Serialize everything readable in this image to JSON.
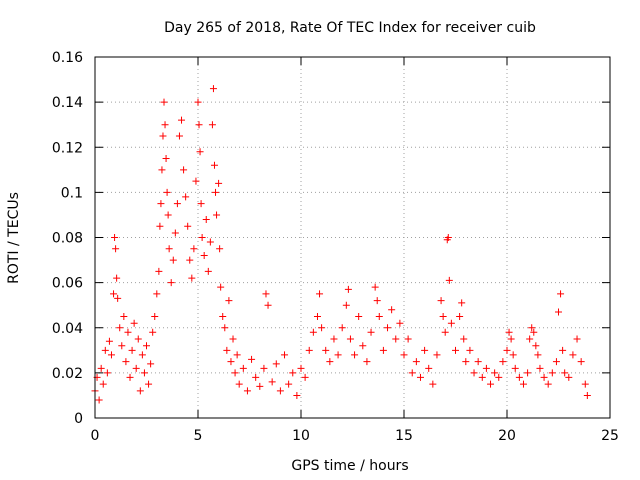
{
  "chart_data": {
    "type": "scatter",
    "title": "Day 265 of 2018, Rate Of TEC Index for receiver cuib",
    "xlabel": "GPS time / hours",
    "ylabel": "ROTI / TECUs",
    "xlim": [
      0,
      25
    ],
    "ylim": [
      0,
      0.16
    ],
    "xticks": [
      0,
      5,
      10,
      15,
      20,
      25
    ],
    "yticks": [
      0,
      0.02,
      0.04,
      0.06,
      0.08,
      0.1,
      0.12,
      0.14,
      0.16
    ],
    "xtick_labels": [
      "0",
      "5",
      "10",
      "15",
      "20",
      "25"
    ],
    "ytick_labels": [
      "0",
      "0.02",
      "0.04",
      "0.06",
      "0.08",
      "0.1",
      "0.12",
      "0.14",
      "0.16"
    ],
    "grid": true,
    "marker": "+",
    "color": "#ff0000",
    "series": [
      {
        "name": "ROTI",
        "points": [
          [
            0.0,
            0.012
          ],
          [
            0.1,
            0.018
          ],
          [
            0.2,
            0.008
          ],
          [
            0.3,
            0.022
          ],
          [
            0.4,
            0.015
          ],
          [
            0.5,
            0.03
          ],
          [
            0.6,
            0.02
          ],
          [
            0.7,
            0.034
          ],
          [
            0.8,
            0.028
          ],
          [
            0.9,
            0.055
          ],
          [
            0.95,
            0.08
          ],
          [
            1.0,
            0.075
          ],
          [
            1.05,
            0.062
          ],
          [
            1.1,
            0.053
          ],
          [
            1.2,
            0.04
          ],
          [
            1.3,
            0.032
          ],
          [
            1.4,
            0.045
          ],
          [
            1.5,
            0.025
          ],
          [
            1.6,
            0.038
          ],
          [
            1.7,
            0.018
          ],
          [
            1.8,
            0.03
          ],
          [
            1.9,
            0.042
          ],
          [
            2.0,
            0.022
          ],
          [
            2.1,
            0.035
          ],
          [
            2.2,
            0.012
          ],
          [
            2.3,
            0.028
          ],
          [
            2.4,
            0.02
          ],
          [
            2.5,
            0.032
          ],
          [
            2.6,
            0.015
          ],
          [
            2.7,
            0.024
          ],
          [
            2.8,
            0.038
          ],
          [
            2.9,
            0.045
          ],
          [
            3.0,
            0.055
          ],
          [
            3.1,
            0.065
          ],
          [
            3.15,
            0.085
          ],
          [
            3.2,
            0.095
          ],
          [
            3.25,
            0.11
          ],
          [
            3.3,
            0.125
          ],
          [
            3.35,
            0.14
          ],
          [
            3.4,
            0.13
          ],
          [
            3.45,
            0.115
          ],
          [
            3.5,
            0.1
          ],
          [
            3.55,
            0.09
          ],
          [
            3.6,
            0.075
          ],
          [
            3.7,
            0.06
          ],
          [
            3.8,
            0.07
          ],
          [
            3.9,
            0.082
          ],
          [
            4.0,
            0.095
          ],
          [
            4.1,
            0.125
          ],
          [
            4.2,
            0.132
          ],
          [
            4.3,
            0.11
          ],
          [
            4.4,
            0.098
          ],
          [
            4.5,
            0.085
          ],
          [
            4.6,
            0.07
          ],
          [
            4.7,
            0.062
          ],
          [
            4.8,
            0.075
          ],
          [
            4.9,
            0.105
          ],
          [
            5.0,
            0.14
          ],
          [
            5.05,
            0.13
          ],
          [
            5.1,
            0.118
          ],
          [
            5.15,
            0.095
          ],
          [
            5.2,
            0.08
          ],
          [
            5.3,
            0.072
          ],
          [
            5.4,
            0.088
          ],
          [
            5.5,
            0.065
          ],
          [
            5.6,
            0.078
          ],
          [
            5.7,
            0.13
          ],
          [
            5.75,
            0.146
          ],
          [
            5.8,
            0.112
          ],
          [
            5.85,
            0.1
          ],
          [
            5.9,
            0.09
          ],
          [
            6.0,
            0.104
          ],
          [
            6.05,
            0.075
          ],
          [
            6.1,
            0.058
          ],
          [
            6.2,
            0.045
          ],
          [
            6.3,
            0.04
          ],
          [
            6.4,
            0.03
          ],
          [
            6.5,
            0.052
          ],
          [
            6.6,
            0.025
          ],
          [
            6.7,
            0.035
          ],
          [
            6.8,
            0.02
          ],
          [
            6.9,
            0.028
          ],
          [
            7.0,
            0.015
          ],
          [
            7.2,
            0.022
          ],
          [
            7.4,
            0.012
          ],
          [
            7.6,
            0.026
          ],
          [
            7.8,
            0.018
          ],
          [
            8.0,
            0.014
          ],
          [
            8.2,
            0.022
          ],
          [
            8.3,
            0.055
          ],
          [
            8.4,
            0.05
          ],
          [
            8.6,
            0.016
          ],
          [
            8.8,
            0.024
          ],
          [
            9.0,
            0.012
          ],
          [
            9.2,
            0.028
          ],
          [
            9.4,
            0.015
          ],
          [
            9.6,
            0.02
          ],
          [
            9.8,
            0.01
          ],
          [
            10.0,
            0.022
          ],
          [
            10.2,
            0.018
          ],
          [
            10.4,
            0.03
          ],
          [
            10.6,
            0.038
          ],
          [
            10.8,
            0.045
          ],
          [
            10.9,
            0.055
          ],
          [
            11.0,
            0.04
          ],
          [
            11.2,
            0.03
          ],
          [
            11.4,
            0.025
          ],
          [
            11.6,
            0.035
          ],
          [
            11.8,
            0.028
          ],
          [
            12.0,
            0.04
          ],
          [
            12.2,
            0.05
          ],
          [
            12.3,
            0.057
          ],
          [
            12.4,
            0.035
          ],
          [
            12.6,
            0.028
          ],
          [
            12.8,
            0.045
          ],
          [
            13.0,
            0.032
          ],
          [
            13.2,
            0.025
          ],
          [
            13.4,
            0.038
          ],
          [
            13.6,
            0.058
          ],
          [
            13.7,
            0.052
          ],
          [
            13.8,
            0.045
          ],
          [
            14.0,
            0.03
          ],
          [
            14.2,
            0.04
          ],
          [
            14.4,
            0.048
          ],
          [
            14.6,
            0.035
          ],
          [
            14.8,
            0.042
          ],
          [
            15.0,
            0.028
          ],
          [
            15.2,
            0.035
          ],
          [
            15.4,
            0.02
          ],
          [
            15.6,
            0.025
          ],
          [
            15.8,
            0.018
          ],
          [
            16.0,
            0.03
          ],
          [
            16.2,
            0.022
          ],
          [
            16.4,
            0.015
          ],
          [
            16.6,
            0.028
          ],
          [
            16.8,
            0.052
          ],
          [
            16.9,
            0.045
          ],
          [
            17.0,
            0.038
          ],
          [
            17.1,
            0.079
          ],
          [
            17.15,
            0.08
          ],
          [
            17.2,
            0.061
          ],
          [
            17.3,
            0.042
          ],
          [
            17.5,
            0.03
          ],
          [
            17.7,
            0.045
          ],
          [
            17.8,
            0.051
          ],
          [
            17.9,
            0.035
          ],
          [
            18.0,
            0.025
          ],
          [
            18.2,
            0.03
          ],
          [
            18.4,
            0.02
          ],
          [
            18.6,
            0.025
          ],
          [
            18.8,
            0.018
          ],
          [
            19.0,
            0.022
          ],
          [
            19.2,
            0.015
          ],
          [
            19.4,
            0.02
          ],
          [
            19.6,
            0.018
          ],
          [
            19.8,
            0.025
          ],
          [
            20.0,
            0.03
          ],
          [
            20.1,
            0.038
          ],
          [
            20.2,
            0.035
          ],
          [
            20.3,
            0.028
          ],
          [
            20.4,
            0.022
          ],
          [
            20.6,
            0.018
          ],
          [
            20.8,
            0.015
          ],
          [
            21.0,
            0.02
          ],
          [
            21.1,
            0.035
          ],
          [
            21.2,
            0.04
          ],
          [
            21.3,
            0.038
          ],
          [
            21.4,
            0.032
          ],
          [
            21.5,
            0.028
          ],
          [
            21.6,
            0.022
          ],
          [
            21.8,
            0.018
          ],
          [
            22.0,
            0.015
          ],
          [
            22.2,
            0.02
          ],
          [
            22.4,
            0.025
          ],
          [
            22.5,
            0.047
          ],
          [
            22.6,
            0.055
          ],
          [
            22.7,
            0.03
          ],
          [
            22.8,
            0.02
          ],
          [
            23.0,
            0.018
          ],
          [
            23.2,
            0.028
          ],
          [
            23.4,
            0.035
          ],
          [
            23.6,
            0.025
          ],
          [
            23.8,
            0.015
          ],
          [
            23.9,
            0.01
          ]
        ]
      }
    ]
  }
}
